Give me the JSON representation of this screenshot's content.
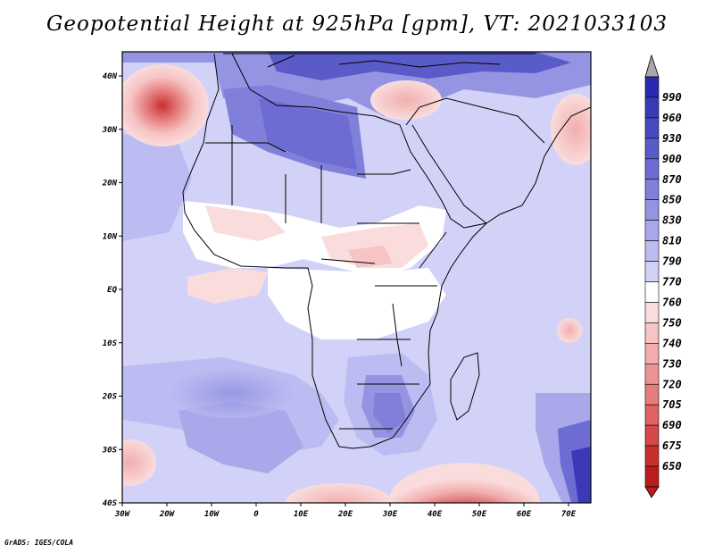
{
  "title": "Geopotential Height at 925hPa [gpm], VT: 2021033103",
  "credit": "GrADS: IGES/COLA",
  "map": {
    "region": "Africa",
    "variable": "Geopotential Height",
    "level": "925hPa",
    "units": "gpm",
    "valid_time": "2021033103",
    "lon_ticks": [
      "30W",
      "20W",
      "10W",
      "0",
      "10E",
      "20E",
      "30E",
      "40E",
      "50E",
      "60E",
      "70E"
    ],
    "lat_ticks": [
      "40N",
      "30N",
      "20N",
      "10N",
      "EQ",
      "10S",
      "20S",
      "30S",
      "40S"
    ]
  },
  "colorbar": {
    "labels": [
      "990",
      "960",
      "930",
      "900",
      "870",
      "850",
      "830",
      "810",
      "790",
      "770",
      "760",
      "750",
      "740",
      "730",
      "720",
      "705",
      "690",
      "675",
      "650"
    ],
    "colors": [
      "#2a2ab0",
      "#3a3ab8",
      "#4848c0",
      "#5a5ac8",
      "#6c6cd2",
      "#8080da",
      "#9494e2",
      "#a8a8ea",
      "#bcbcf2",
      "#d2d2f8",
      "#ffffff",
      "#fadcdc",
      "#f6c4c4",
      "#f2aeae",
      "#ec9494",
      "#e67c7c",
      "#de6262",
      "#d44848",
      "#c83030",
      "#bb1c1c"
    ],
    "over_color": "#a8a8a8",
    "under_color": "#bb1c1c"
  }
}
